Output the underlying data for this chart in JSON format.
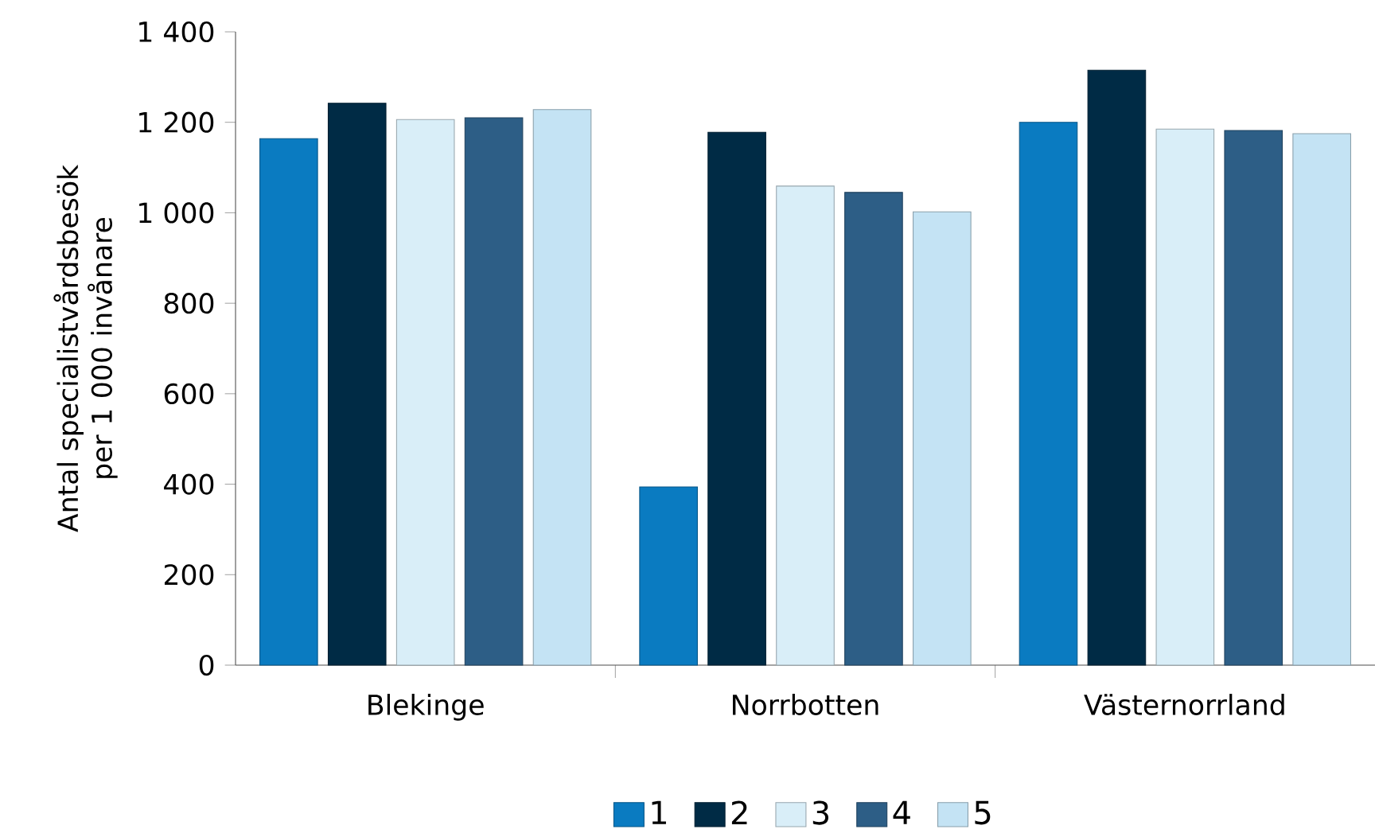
{
  "chart_data": {
    "type": "bar",
    "ylabel": "Antal specialistvårdsbesök per 1 000 invånare",
    "categories": [
      "Blekinge",
      "Norrbotten",
      "Västernorrland"
    ],
    "series": [
      {
        "name": "1",
        "color": "#0a7bc1",
        "values": [
          1164,
          394,
          1200
        ]
      },
      {
        "name": "2",
        "color": "#002b45",
        "values": [
          1242,
          1178,
          1315
        ]
      },
      {
        "name": "3",
        "color": "#d9eef8",
        "values": [
          1206,
          1059,
          1185
        ]
      },
      {
        "name": "4",
        "color": "#2d5e86",
        "values": [
          1210,
          1045,
          1182
        ]
      },
      {
        "name": "5",
        "color": "#c4e3f4",
        "values": [
          1228,
          1002,
          1175
        ]
      }
    ],
    "ylim": [
      0,
      1400
    ],
    "yticks": [
      0,
      200,
      400,
      600,
      800,
      {
        "value": 1000,
        "label": "1 000"
      },
      {
        "value": 1200,
        "label": "1 200"
      },
      {
        "value": 1400,
        "label": "1 400"
      }
    ],
    "grid": false,
    "legend": "bottom"
  }
}
